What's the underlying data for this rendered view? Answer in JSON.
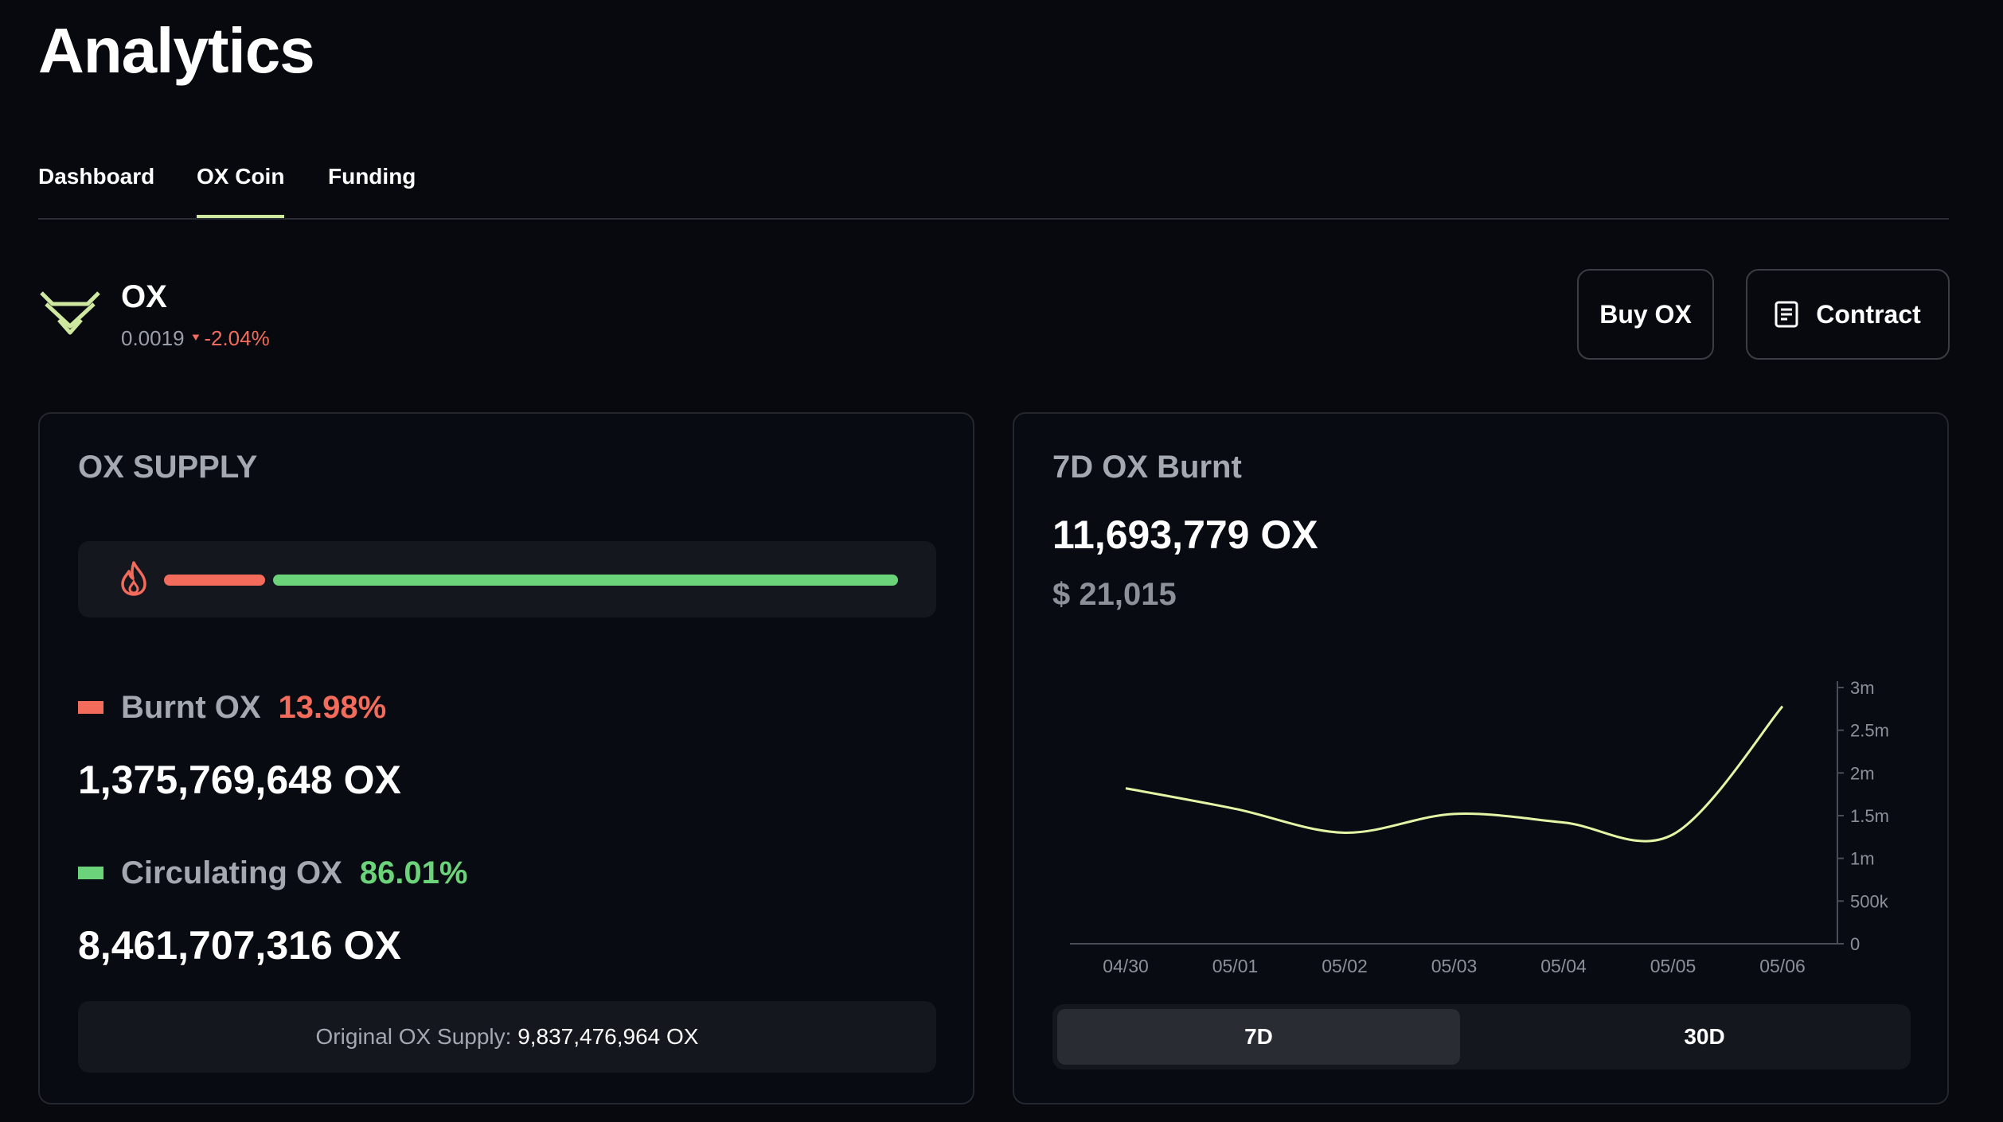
{
  "page_title": "Analytics",
  "tabs": [
    {
      "label": "Dashboard",
      "active": false
    },
    {
      "label": "OX Coin",
      "active": true
    },
    {
      "label": "Funding",
      "active": false
    }
  ],
  "coin": {
    "symbol": "OX",
    "price": "0.0019",
    "change": "-2.04%",
    "logo_icon": "ox-logo-icon",
    "accent_color": "#cfe8a0"
  },
  "actions": {
    "buy_label": "Buy OX",
    "contract_label": "Contract",
    "contract_icon": "document-icon"
  },
  "supply": {
    "heading": "OX SUPPLY",
    "burnt_fraction": 0.1398,
    "circulating_fraction": 0.8601,
    "burnt_label": "Burnt OX",
    "burnt_pct": "13.98%",
    "burnt_amount": "1,375,769,648 OX",
    "circulating_label": "Circulating OX",
    "circulating_pct": "86.01%",
    "circulating_amount": "8,461,707,316 OX",
    "original_label": "Original OX Supply:",
    "original_amount": "9,837,476,964 OX",
    "colors": {
      "burnt": "#f26b5b",
      "circulating": "#6bd47a"
    }
  },
  "burnt": {
    "heading": "7D OX Burnt",
    "amount": "11,693,779 OX",
    "usd": "$ 21,015",
    "range_options": [
      {
        "label": "7D",
        "active": true
      },
      {
        "label": "30D",
        "active": false
      }
    ]
  },
  "chart_data": {
    "type": "line",
    "x": [
      "04/30",
      "05/01",
      "05/02",
      "05/03",
      "05/04",
      "05/05",
      "05/06"
    ],
    "series": [
      {
        "values": [
          1820000,
          1580000,
          1300000,
          1520000,
          1420000,
          1280000,
          2780000
        ]
      }
    ],
    "yticks": [
      "0",
      "500k",
      "1m",
      "1.5m",
      "2m",
      "2.5m",
      "3m"
    ],
    "ylim": [
      0,
      3000000
    ],
    "y_axis_side": "right",
    "grid": false,
    "line_color": "#e4f5a6"
  }
}
